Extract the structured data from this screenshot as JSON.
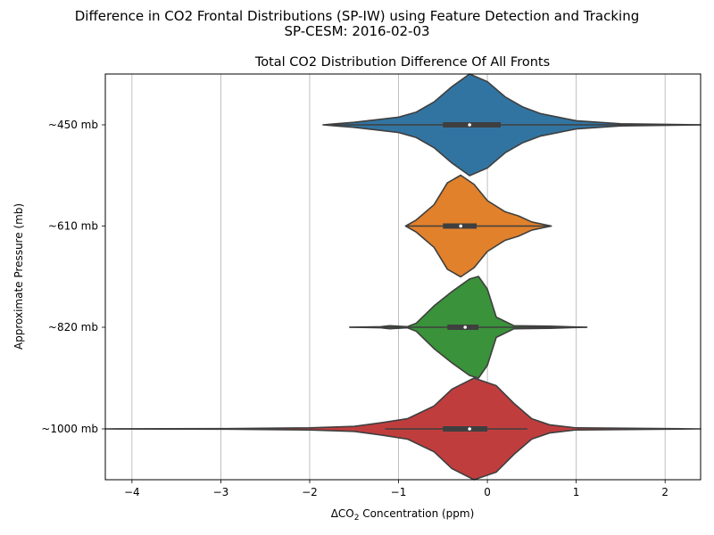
{
  "figure": {
    "suptitle_line1": "Difference in CO2 Frontal Distributions (SP-IW) using Feature Detection and Tracking",
    "suptitle_line2": "SP-CESM: 2016-02-03"
  },
  "chart_data": {
    "type": "violin",
    "orientation": "horizontal",
    "title": "Total CO2 Distribution Difference Of All Fronts",
    "xlabel_prefix": "ΔCO",
    "xlabel_sub": "2",
    "xlabel_suffix": " Concentration (ppm)",
    "ylabel": "Approximate Pressure (mb)",
    "xlim": [
      -4.3,
      2.4
    ],
    "xticks": [
      -4,
      -3,
      -2,
      -1,
      0,
      1,
      2
    ],
    "xtick_labels": [
      "−4",
      "−3",
      "−2",
      "−1",
      "0",
      "1",
      "2"
    ],
    "grid": "x",
    "series": [
      {
        "category": "~450 mb",
        "color": "#3274a1",
        "median": -0.2,
        "q1": -0.5,
        "q3": 0.15,
        "whisker_low": -1.8,
        "whisker_high": 2.4,
        "density": [
          [
            -1.85,
            0.0
          ],
          [
            -1.5,
            0.05
          ],
          [
            -1.0,
            0.15
          ],
          [
            -0.8,
            0.25
          ],
          [
            -0.6,
            0.45
          ],
          [
            -0.4,
            0.75
          ],
          [
            -0.2,
            1.0
          ],
          [
            0.0,
            0.85
          ],
          [
            0.2,
            0.55
          ],
          [
            0.4,
            0.35
          ],
          [
            0.6,
            0.22
          ],
          [
            0.8,
            0.15
          ],
          [
            1.0,
            0.08
          ],
          [
            1.5,
            0.02
          ],
          [
            2.4,
            0.0
          ]
        ]
      },
      {
        "category": "~610 mb",
        "color": "#e1812c",
        "median": -0.3,
        "q1": -0.5,
        "q3": -0.12,
        "whisker_low": -0.9,
        "whisker_high": 0.7,
        "density": [
          [
            -0.92,
            0.0
          ],
          [
            -0.8,
            0.12
          ],
          [
            -0.6,
            0.42
          ],
          [
            -0.45,
            0.85
          ],
          [
            -0.3,
            1.0
          ],
          [
            -0.15,
            0.82
          ],
          [
            0.0,
            0.5
          ],
          [
            0.2,
            0.28
          ],
          [
            0.35,
            0.2
          ],
          [
            0.5,
            0.08
          ],
          [
            0.72,
            0.0
          ]
        ]
      },
      {
        "category": "~820 mb",
        "color": "#3a923a",
        "median": -0.25,
        "q1": -0.45,
        "q3": -0.1,
        "whisker_low": -1.55,
        "whisker_high": 1.12,
        "density": [
          [
            -1.55,
            0.0
          ],
          [
            -1.2,
            0.01
          ],
          [
            -1.1,
            0.03
          ],
          [
            -0.9,
            0.01
          ],
          [
            -0.8,
            0.08
          ],
          [
            -0.6,
            0.42
          ],
          [
            -0.4,
            0.7
          ],
          [
            -0.2,
            0.95
          ],
          [
            -0.1,
            1.0
          ],
          [
            0.0,
            0.75
          ],
          [
            0.1,
            0.2
          ],
          [
            0.3,
            0.03
          ],
          [
            0.7,
            0.02
          ],
          [
            1.12,
            0.0
          ]
        ]
      },
      {
        "category": "~1000 mb",
        "color": "#c03d3e",
        "median": -0.2,
        "q1": -0.5,
        "q3": 0.0,
        "whisker_low": -1.15,
        "whisker_high": 0.45,
        "density": [
          [
            -4.3,
            0.0
          ],
          [
            -3.0,
            0.005
          ],
          [
            -2.0,
            0.02
          ],
          [
            -1.5,
            0.05
          ],
          [
            -1.2,
            0.12
          ],
          [
            -0.9,
            0.2
          ],
          [
            -0.6,
            0.45
          ],
          [
            -0.4,
            0.78
          ],
          [
            -0.15,
            1.0
          ],
          [
            0.1,
            0.85
          ],
          [
            0.3,
            0.5
          ],
          [
            0.5,
            0.2
          ],
          [
            0.7,
            0.08
          ],
          [
            1.0,
            0.02
          ],
          [
            2.4,
            0.0
          ]
        ]
      }
    ]
  }
}
